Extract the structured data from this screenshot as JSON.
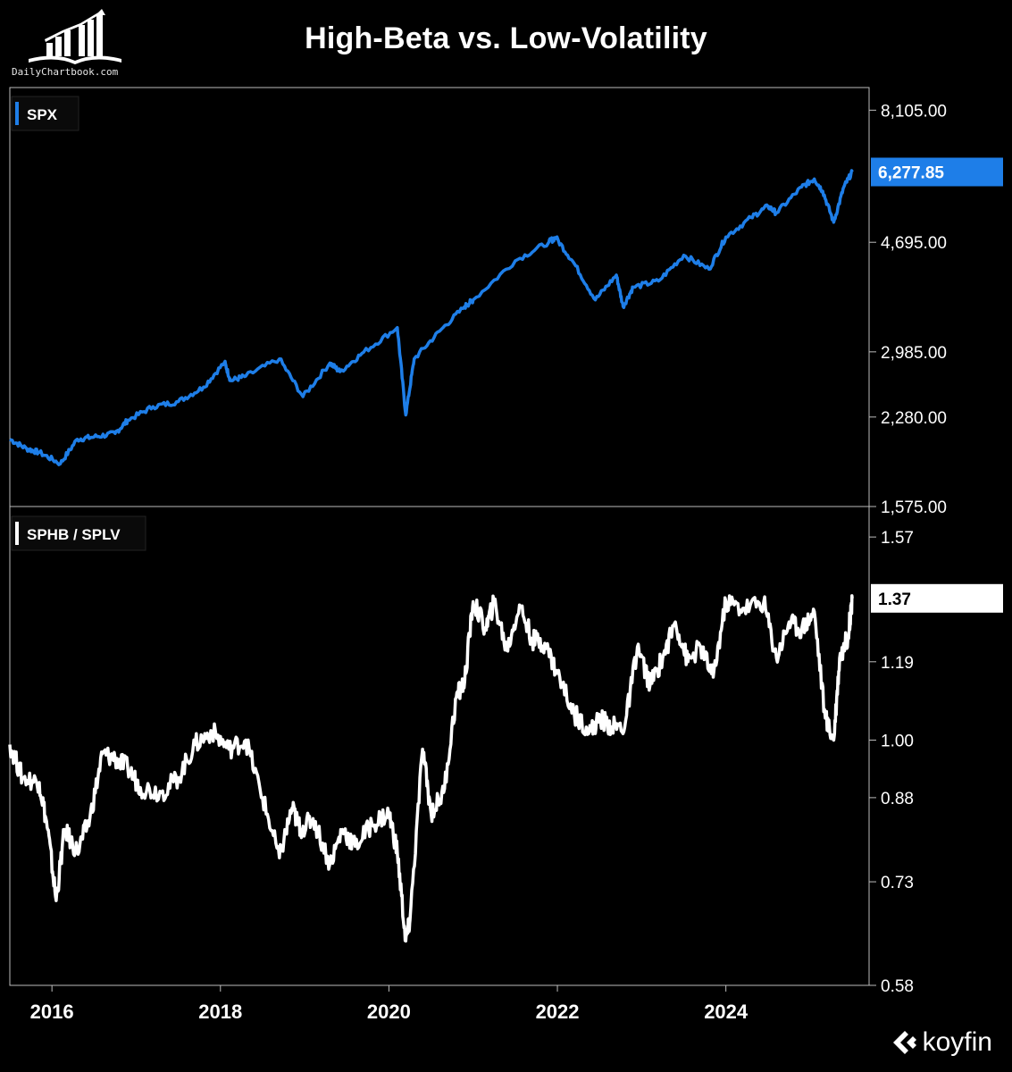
{
  "title": "High-Beta vs. Low-Volatility",
  "logo_text": "DailyChartbook.com",
  "brand": "koyfin",
  "chart_data": [
    {
      "type": "line",
      "panel": "top",
      "scale": "log",
      "legend": "SPX",
      "color": "#1e7ee8",
      "ylim": [
        1575,
        8900
      ],
      "yticks": [
        {
          "value": 8105,
          "label": "8,105.00"
        },
        {
          "value": 4695,
          "label": "4,695.00"
        },
        {
          "value": 2985,
          "label": "2,985.00"
        },
        {
          "value": 2280,
          "label": "2,280.00"
        },
        {
          "value": 1575,
          "label": "1,575.00"
        }
      ],
      "last_value": 6277.85,
      "last_label": "6,277.85",
      "series": {
        "x": [
          2015.5,
          2015.7,
          2015.85,
          2016.1,
          2016.3,
          2016.5,
          2016.75,
          2016.9,
          2017.2,
          2017.5,
          2017.8,
          2018.05,
          2018.12,
          2018.3,
          2018.7,
          2018.98,
          2019.3,
          2019.42,
          2019.7,
          2020.1,
          2020.2,
          2020.3,
          2020.6,
          2020.9,
          2021.0,
          2021.5,
          2021.9,
          2021.98,
          2022.2,
          2022.45,
          2022.7,
          2022.78,
          2022.9,
          2023.2,
          2023.5,
          2023.8,
          2024.0,
          2024.3,
          2024.5,
          2024.6,
          2024.9,
          2025.05,
          2025.15,
          2025.28,
          2025.4,
          2025.5
        ],
        "y": [
          2080,
          2000,
          1970,
          1880,
          2080,
          2100,
          2130,
          2250,
          2380,
          2430,
          2580,
          2860,
          2650,
          2700,
          2900,
          2480,
          2850,
          2750,
          2980,
          3300,
          2300,
          2900,
          3250,
          3600,
          3700,
          4350,
          4700,
          4790,
          4300,
          3700,
          4100,
          3600,
          3900,
          4000,
          4450,
          4200,
          4800,
          5200,
          5450,
          5300,
          5900,
          6100,
          5800,
          5100,
          5900,
          6277.85
        ]
      }
    },
    {
      "type": "line",
      "panel": "bottom",
      "scale": "log",
      "legend": "SPHB / SPLV",
      "color": "#ffffff",
      "ylim": [
        0.58,
        1.68
      ],
      "yticks": [
        {
          "value": 1.57,
          "label": "1.57"
        },
        {
          "value": 1.19,
          "label": "1.19"
        },
        {
          "value": 1.0,
          "label": "1.00"
        },
        {
          "value": 0.88,
          "label": "0.88"
        },
        {
          "value": 0.73,
          "label": "0.73"
        },
        {
          "value": 0.58,
          "label": "0.58"
        }
      ],
      "last_value": 1.37,
      "last_label": "1.37",
      "series": {
        "x": [
          2015.5,
          2015.65,
          2015.85,
          2015.95,
          2016.05,
          2016.15,
          2016.3,
          2016.45,
          2016.6,
          2016.75,
          2016.9,
          2017.05,
          2017.3,
          2017.5,
          2017.7,
          2017.9,
          2018.1,
          2018.3,
          2018.5,
          2018.7,
          2018.85,
          2018.95,
          2019.1,
          2019.3,
          2019.45,
          2019.6,
          2019.8,
          2020.0,
          2020.1,
          2020.2,
          2020.25,
          2020.4,
          2020.5,
          2020.65,
          2020.8,
          2020.9,
          2021.0,
          2021.15,
          2021.25,
          2021.4,
          2021.55,
          2021.7,
          2021.85,
          2022.0,
          2022.2,
          2022.4,
          2022.5,
          2022.65,
          2022.8,
          2022.95,
          2023.1,
          2023.25,
          2023.4,
          2023.55,
          2023.7,
          2023.85,
          2024.0,
          2024.2,
          2024.45,
          2024.6,
          2024.75,
          2024.9,
          2025.05,
          2025.18,
          2025.28,
          2025.35,
          2025.45,
          2025.5
        ],
        "y": [
          0.99,
          0.92,
          0.91,
          0.82,
          0.7,
          0.82,
          0.78,
          0.84,
          0.97,
          0.96,
          0.94,
          0.9,
          0.89,
          0.92,
          0.99,
          1.02,
          0.98,
          1.0,
          0.88,
          0.77,
          0.86,
          0.82,
          0.84,
          0.76,
          0.82,
          0.79,
          0.83,
          0.85,
          0.78,
          0.64,
          0.67,
          0.98,
          0.85,
          0.89,
          1.1,
          1.14,
          1.36,
          1.28,
          1.36,
          1.22,
          1.35,
          1.25,
          1.24,
          1.16,
          1.06,
          1.02,
          1.05,
          1.03,
          1.03,
          1.23,
          1.13,
          1.2,
          1.3,
          1.19,
          1.23,
          1.15,
          1.36,
          1.34,
          1.36,
          1.2,
          1.3,
          1.28,
          1.33,
          1.05,
          1.0,
          1.2,
          1.26,
          1.37
        ]
      }
    }
  ],
  "x_axis": {
    "range": [
      2015.5,
      2025.7
    ],
    "ticks": [
      {
        "value": 2016,
        "label": "2016"
      },
      {
        "value": 2018,
        "label": "2018"
      },
      {
        "value": 2020,
        "label": "2020"
      },
      {
        "value": 2022,
        "label": "2022"
      },
      {
        "value": 2024,
        "label": "2024"
      }
    ]
  }
}
